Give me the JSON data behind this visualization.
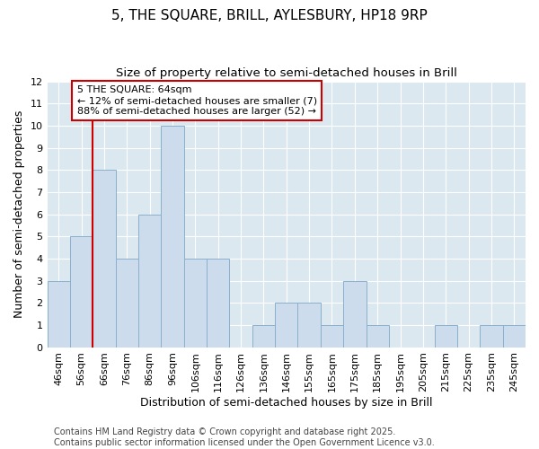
{
  "title1": "5, THE SQUARE, BRILL, AYLESBURY, HP18 9RP",
  "title2": "Size of property relative to semi-detached houses in Brill",
  "xlabel": "Distribution of semi-detached houses by size in Brill",
  "ylabel": "Number of semi-detached properties",
  "bins": [
    "46sqm",
    "56sqm",
    "66sqm",
    "76sqm",
    "86sqm",
    "96sqm",
    "106sqm",
    "116sqm",
    "126sqm",
    "136sqm",
    "146sqm",
    "155sqm",
    "165sqm",
    "175sqm",
    "185sqm",
    "195sqm",
    "205sqm",
    "215sqm",
    "225sqm",
    "235sqm",
    "245sqm"
  ],
  "values": [
    3,
    5,
    8,
    4,
    6,
    10,
    4,
    4,
    0,
    1,
    2,
    2,
    1,
    3,
    1,
    0,
    0,
    1,
    0,
    1,
    1
  ],
  "bar_color": "#ccdcec",
  "bar_edge_color": "#8ab0cc",
  "red_line_bin_index": 2,
  "red_line_color": "#cc0000",
  "annotation_text": "5 THE SQUARE: 64sqm\n← 12% of semi-detached houses are smaller (7)\n88% of semi-detached houses are larger (52) →",
  "annotation_box_color": "white",
  "annotation_box_edge": "#cc0000",
  "ylim": [
    0,
    12
  ],
  "yticks": [
    0,
    1,
    2,
    3,
    4,
    5,
    6,
    7,
    8,
    9,
    10,
    11,
    12
  ],
  "plot_bg_color": "#dce8f0",
  "fig_bg_color": "#ffffff",
  "grid_color": "#ffffff",
  "footnote": "Contains HM Land Registry data © Crown copyright and database right 2025.\nContains public sector information licensed under the Open Government Licence v3.0.",
  "title_fontsize": 11,
  "subtitle_fontsize": 9.5,
  "axis_label_fontsize": 9,
  "tick_fontsize": 8,
  "annotation_fontsize": 8,
  "footnote_fontsize": 7
}
